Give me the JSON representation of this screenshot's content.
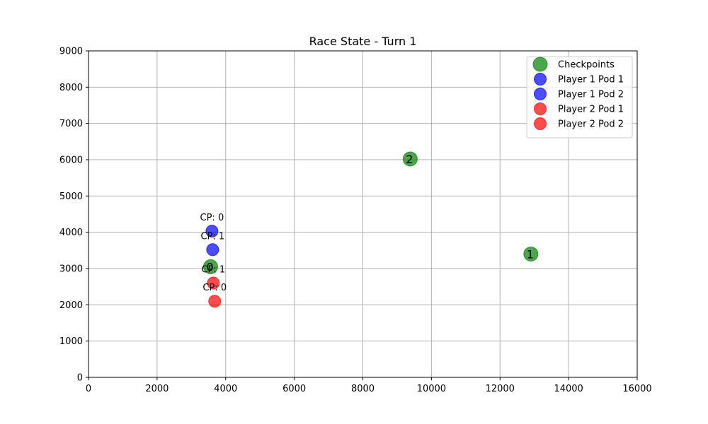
{
  "chart_data": {
    "type": "scatter",
    "title": "Race State - Turn 1",
    "xlabel": "",
    "ylabel": "",
    "xlim": [
      0,
      16000
    ],
    "ylim": [
      0,
      9000
    ],
    "xticks": [
      0,
      2000,
      4000,
      6000,
      8000,
      10000,
      12000,
      14000,
      16000
    ],
    "yticks": [
      0,
      1000,
      2000,
      3000,
      4000,
      5000,
      6000,
      7000,
      8000,
      9000
    ],
    "grid": true,
    "legend_position": "top-right",
    "series": [
      {
        "name": "Checkpoints",
        "color": "#008000",
        "points": [
          {
            "x": 3560,
            "y": 3050,
            "label": "0"
          },
          {
            "x": 12900,
            "y": 3400,
            "label": "1"
          },
          {
            "x": 9380,
            "y": 6020,
            "label": "2"
          }
        ]
      },
      {
        "name": "Player 1 Pod 1",
        "color": "#0000ff",
        "points": [
          {
            "x": 3600,
            "y": 4030,
            "label": "CP: 0"
          }
        ]
      },
      {
        "name": "Player 1 Pod 2",
        "color": "#0000ff",
        "points": [
          {
            "x": 3620,
            "y": 3520,
            "label": "CP: 1"
          }
        ]
      },
      {
        "name": "Player 2 Pod 1",
        "color": "#ff0000",
        "points": [
          {
            "x": 3640,
            "y": 2600,
            "label": "CP: 1"
          }
        ]
      },
      {
        "name": "Player 2 Pod 2",
        "color": "#ff0000",
        "points": [
          {
            "x": 3680,
            "y": 2100,
            "label": "CP: 0"
          }
        ]
      }
    ]
  }
}
